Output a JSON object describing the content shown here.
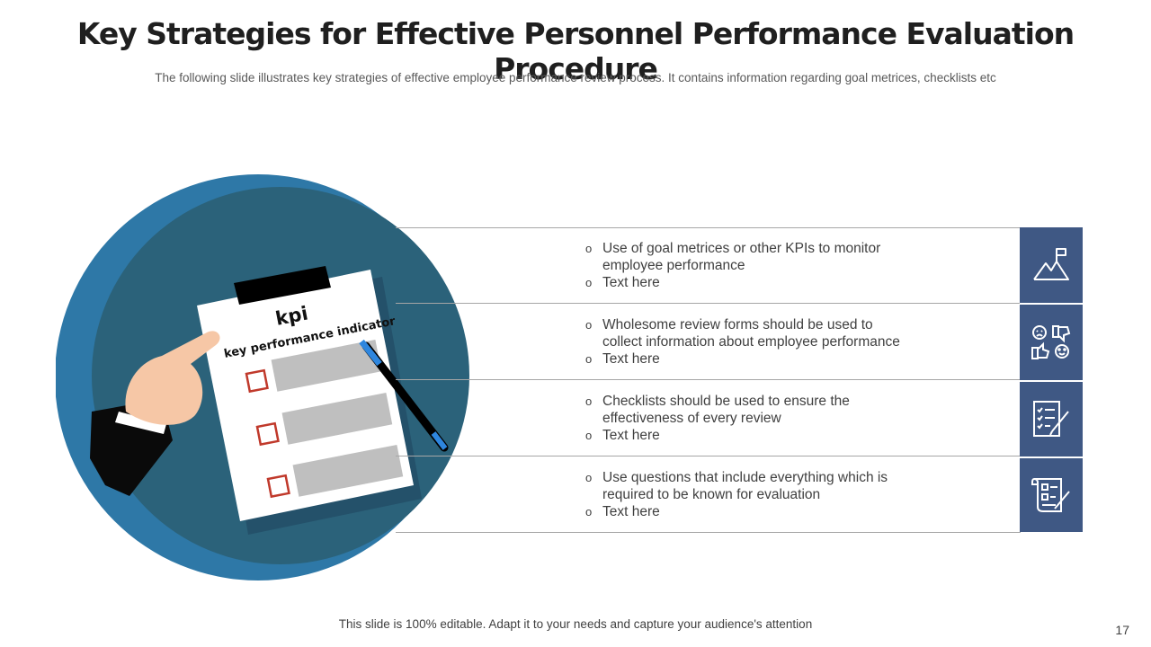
{
  "slide": {
    "title": "Key Strategies for Effective Personnel Performance Evaluation Procedure",
    "subtitle": "The following slide illustrates key strategies of effective employee performance review process. It contains information regarding goal metrices, checklists etc",
    "footer": "This slide is 100% editable. Adapt it to your needs and capture your audience's attention",
    "page_number": "17"
  },
  "illustration": {
    "clipboard_heading": "kpi",
    "clipboard_subheading": "key performance indicator"
  },
  "strategies": [
    {
      "line1": "Use of goal metrices or other KPIs to monitor",
      "line2": "employee performance",
      "bullet2": "Text here",
      "icon": "mountain-flag-icon"
    },
    {
      "line1": "Wholesome review forms should be used to",
      "line2": "collect information about employee performance",
      "bullet2": "Text here",
      "icon": "feedback-faces-thumbs-icon"
    },
    {
      "line1": "Checklists should be used to ensure the",
      "line2": "effectiveness of every review",
      "bullet2": "Text here",
      "icon": "checklist-pen-icon"
    },
    {
      "line1": "Use questions that include everything which is",
      "line2": "required to be known for evaluation",
      "bullet2": "Text here",
      "icon": "questionnaire-scroll-icon"
    }
  ],
  "colors": {
    "circle_outer": "#2e78a7",
    "circle_inner": "#2b627a",
    "icon_bar": "#3f5884",
    "divider": "#a6a6a6"
  }
}
